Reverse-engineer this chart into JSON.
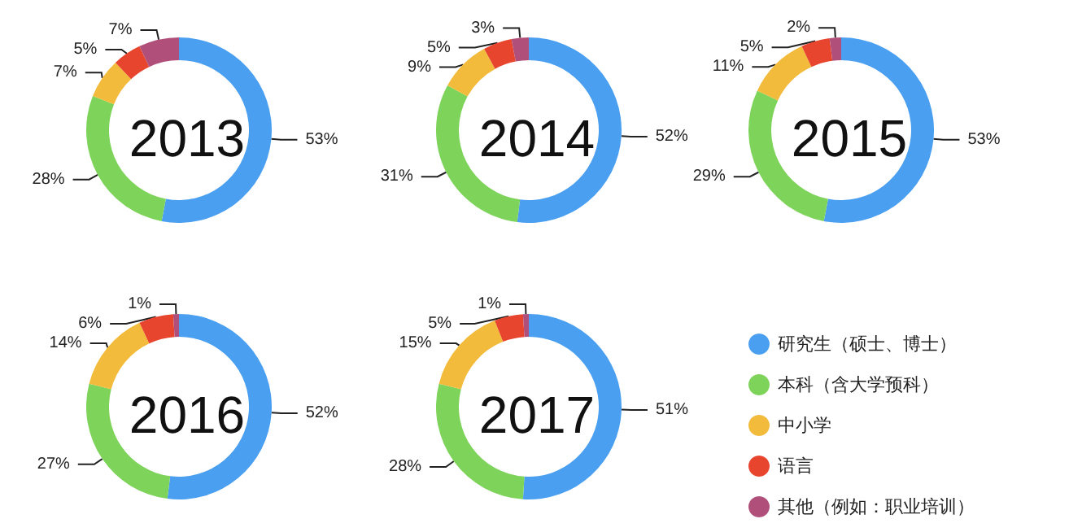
{
  "chart_data": {
    "type": "donut",
    "categories": [
      "研究生（硕士、博士）",
      "本科（含大学预科）",
      "中小学",
      "语言",
      "其他（例如：职业培训）"
    ],
    "colors": [
      "#4a9ff0",
      "#7ed35a",
      "#f2bb3c",
      "#e8452f",
      "#b0507a"
    ],
    "legend": "right",
    "series": [
      {
        "name": "2013",
        "values": [
          53,
          28,
          7,
          5,
          7
        ],
        "value_labels": [
          "53%",
          "28%",
          "7%",
          "5%",
          "7%"
        ]
      },
      {
        "name": "2014",
        "values": [
          52,
          31,
          9,
          5,
          3
        ],
        "value_labels": [
          "52%",
          "31%",
          "9%",
          "5%",
          "3%"
        ]
      },
      {
        "name": "2015",
        "values": [
          53,
          29,
          11,
          5,
          2
        ],
        "value_labels": [
          "53%",
          "29%",
          "11%",
          "5%",
          "2%"
        ]
      },
      {
        "name": "2016",
        "values": [
          52,
          27,
          14,
          6,
          1
        ],
        "value_labels": [
          "52%",
          "27%",
          "14%",
          "6%",
          "1%"
        ]
      },
      {
        "name": "2017",
        "values": [
          51,
          28,
          15,
          5,
          1
        ],
        "value_labels": [
          "51%",
          "28%",
          "15%",
          "5%",
          "1%"
        ]
      }
    ]
  }
}
